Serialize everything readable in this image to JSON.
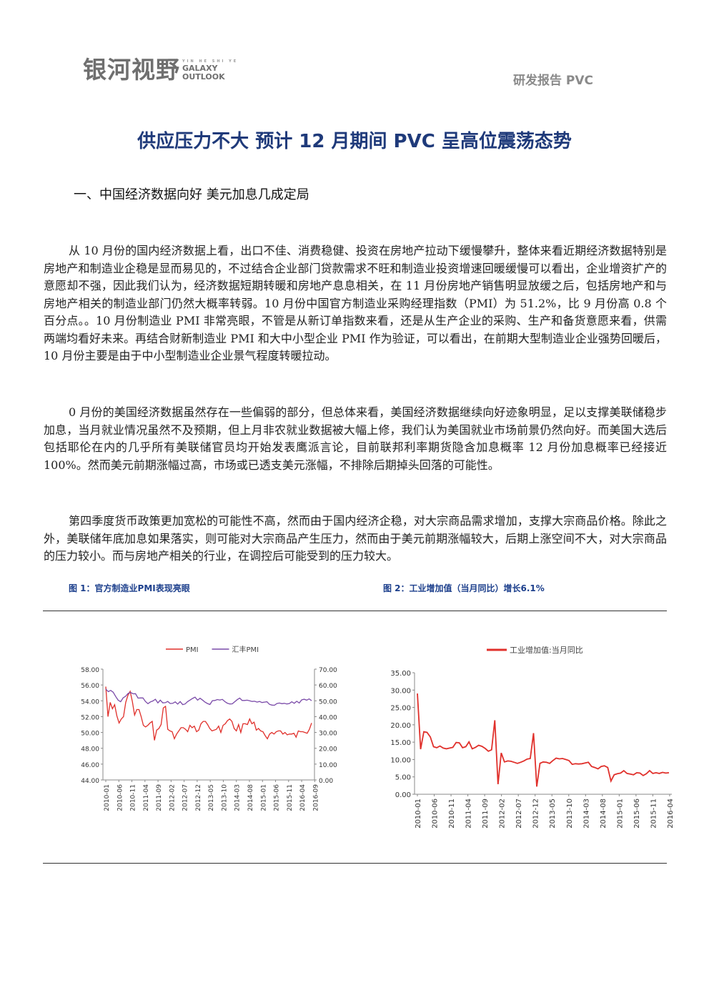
{
  "header": {
    "logo_cn": "银河视野",
    "logo_tiny": "YIN HE SHI YE",
    "logo_en_1": "GALAXY",
    "logo_en_2": "OUTLOOK",
    "report_tag": "研发报告 PVC"
  },
  "title": "供应压力不大 预计 12 月期间 PVC 呈高位震荡态势",
  "section1": "一、中国经济数据向好 美元加息几成定局",
  "paragraphs": [
    "从 10 月份的国内经济数据上看，出口不佳、消费稳健、投资在房地产拉动下缓慢攀升，整体来看近期经济数据特别是房地产和制造业企稳是显而易见的，不过结合企业部门贷款需求不旺和制造业投资增速回暖缓慢可以看出，企业增资扩产的意愿却不强，因此我们认为，经济数据短期转暖和房地产息息相关，在 11 月份房地产销售明显放缓之后，包括房地产和与房地产相关的制造业部门仍然大概率转弱。10 月份中国官方制造业采购经理指数（PMI）为 51.2%，比 9 月份高 0.8 个百分点。。10 月份制造业 PMI 非常亮眼，不管是从新订单指数来看，还是从生产企业的采购、生产和备货意愿来看，供需两端均看好未来。再结合财新制造业 PMI 和大中小型企业 PMI 作为验证，可以看出，在前期大型制造业企业强势回暖后，10 月份主要是由于中小型制造业企业景气程度转暖拉动。",
    "0 月份的美国经济数据虽然存在一些偏弱的部分，但总体来看，美国经济数据继续向好迹象明显，足以支撑美联储稳步加息，当月就业情况虽然不及预期，但上月非农就业数据被大幅上修，我们认为美国就业市场前景仍然向好。而美国大选后包括耶伦在内的几乎所有美联储官员均开始发表鹰派言论，目前联邦利率期货隐含加息概率 12 月份加息概率已经接近 100%。然而美元前期涨幅过高，市场或已透支美元涨幅，不排除后期掉头回落的可能性。",
    "第四季度货币政策更加宽松的可能性不高，然而由于国内经济企稳，对大宗商品需求增加，支撑大宗商品价格。除此之外，美联储年底加息如果落实，则可能对大宗商品产生压力，然而由于美元前期涨幅较大，后期上涨空间不大，对大宗商品的压力较小。而与房地产相关的行业，在调控后可能受到的压力较大。"
  ],
  "figures": [
    {
      "caption": "图 1：官方制造业PMI表现亮眼"
    },
    {
      "caption": "图 2：工业增加值（当月同比）增长6.1%"
    }
  ],
  "chart_data": [
    {
      "type": "line",
      "title": "",
      "x_tick_labels": [
        "2010-01",
        "2010-06",
        "2010-11",
        "2011-04",
        "2011-09",
        "2012-02",
        "2012-07",
        "2012-12",
        "2013-05",
        "2013-10",
        "2014-03",
        "2014-08",
        "2015-01",
        "2015-06",
        "2015-11",
        "2016-04",
        "2016-09"
      ],
      "y_left_ticks": [
        "58.00",
        "56.00",
        "54.00",
        "52.00",
        "50.00",
        "48.00",
        "46.00",
        "44.00"
      ],
      "y_right_ticks": [
        "70.00",
        "60.00",
        "50.00",
        "40.00",
        "30.00",
        "20.00",
        "10.00",
        "0.00"
      ],
      "ylim_left": [
        44,
        58
      ],
      "ylim_right": [
        0,
        70
      ],
      "legend_position": "top",
      "series": [
        {
          "name": "PMI",
          "axis": "left",
          "color": "#e0302b",
          "values": [
            55.8,
            52.0,
            53.8,
            53.0,
            53.5,
            52.1,
            51.2,
            51.7,
            52.0,
            53.8,
            54.7,
            55.2,
            53.9,
            52.2,
            52.9,
            52.9,
            52.0,
            50.9,
            50.7,
            50.9,
            51.2,
            51.4,
            49.0,
            50.3,
            50.5,
            51.0,
            53.1,
            53.3,
            50.4,
            50.2,
            50.1,
            49.2,
            49.8,
            50.2,
            50.6,
            50.6,
            50.4,
            50.1,
            50.9,
            50.6,
            50.8,
            50.1,
            50.3,
            51.1,
            51.4,
            51.4,
            51.0,
            50.5,
            50.2,
            50.3,
            50.4,
            50.8,
            50.0,
            50.9,
            51.1,
            51.5,
            51.7,
            51.4,
            50.5,
            50.2,
            51.0,
            50.0,
            51.1,
            51.1,
            51.0,
            51.7,
            51.1,
            51.3,
            50.3,
            50.5,
            50.2,
            50.1,
            49.6,
            49.2,
            49.8,
            50.0,
            49.8,
            50.1,
            50.2,
            50.2,
            49.8,
            50.0,
            49.7,
            49.8,
            49.8,
            49.9,
            49.4,
            50.2,
            50.1,
            50.1,
            50.0,
            49.9,
            50.4,
            51.2
          ]
        },
        {
          "name": "汇丰PMI",
          "axis": "right",
          "color": "#7a4aa8",
          "values": [
            57.4,
            55.8,
            56.6,
            55.4,
            52.7,
            50.4,
            49.4,
            51.9,
            52.9,
            54.7,
            55.3,
            54.4,
            54.5,
            51.7,
            51.8,
            51.8,
            49.6,
            48.2,
            49.3,
            49.9,
            51.0,
            48.7,
            50.4,
            48.7,
            48.8,
            49.6,
            48.3,
            48.4,
            49.3,
            47.9,
            49.5,
            47.6,
            48.0,
            49.5,
            50.5,
            51.5,
            52.3,
            50.4,
            51.6,
            50.5,
            49.2,
            48.3,
            47.7,
            50.1,
            50.2,
            50.8,
            50.5,
            50.9,
            49.5,
            48.5,
            48.0,
            48.1,
            49.4,
            50.7,
            51.7,
            50.2,
            50.2,
            50.4,
            50.0,
            49.6,
            49.7,
            49.2,
            49.6,
            48.9,
            49.2,
            49.4,
            47.8,
            47.3,
            47.2,
            48.3,
            48.6,
            48.2,
            48.4,
            48.0,
            48.3,
            49.4,
            48.4,
            49.7,
            48.6,
            50.6,
            51.0,
            50.4,
            51.2,
            50.1
          ]
        }
      ]
    },
    {
      "type": "line",
      "title": "",
      "legend_position": "top",
      "x_tick_labels": [
        "2010-01",
        "2010-06",
        "2010-11",
        "2011-04",
        "2011-09",
        "2012-02",
        "2012-07",
        "2012-12",
        "2013-05",
        "2013-10",
        "2014-03",
        "2014-08",
        "2015-01",
        "2015-06",
        "2015-11",
        "2016-04"
      ],
      "y_ticks": [
        "35.00",
        "30.00",
        "25.00",
        "20.00",
        "15.00",
        "10.00",
        "5.00",
        "0.00"
      ],
      "ylim": [
        0,
        35
      ],
      "series": [
        {
          "name": "工业增加值:当月同比",
          "color": "#e0302b",
          "values": [
            29.0,
            13.0,
            18.0,
            17.8,
            16.5,
            13.7,
            13.4,
            13.9,
            13.3,
            13.1,
            13.3,
            13.5,
            14.9,
            14.8,
            13.4,
            13.7,
            15.1,
            13.1,
            13.5,
            14.1,
            13.8,
            13.2,
            12.4,
            12.8,
            21.3,
            2.9,
            11.9,
            9.3,
            9.6,
            9.5,
            9.2,
            8.9,
            9.2,
            9.6,
            10.1,
            10.3,
            17.6,
            2.2,
            8.9,
            9.3,
            9.2,
            8.9,
            9.7,
            10.4,
            10.2,
            10.3,
            10.0,
            9.7,
            8.6,
            8.8,
            8.7,
            8.8,
            9.0,
            9.2,
            8.0,
            7.7,
            7.3,
            8.0,
            8.2,
            7.7,
            3.8,
            5.6,
            5.9,
            6.1,
            6.8,
            6.0,
            5.8,
            5.6,
            6.2,
            6.1,
            5.4,
            5.9,
            6.8,
            6.0,
            6.2,
            6.0,
            6.3,
            6.1,
            6.2
          ]
        }
      ]
    }
  ]
}
